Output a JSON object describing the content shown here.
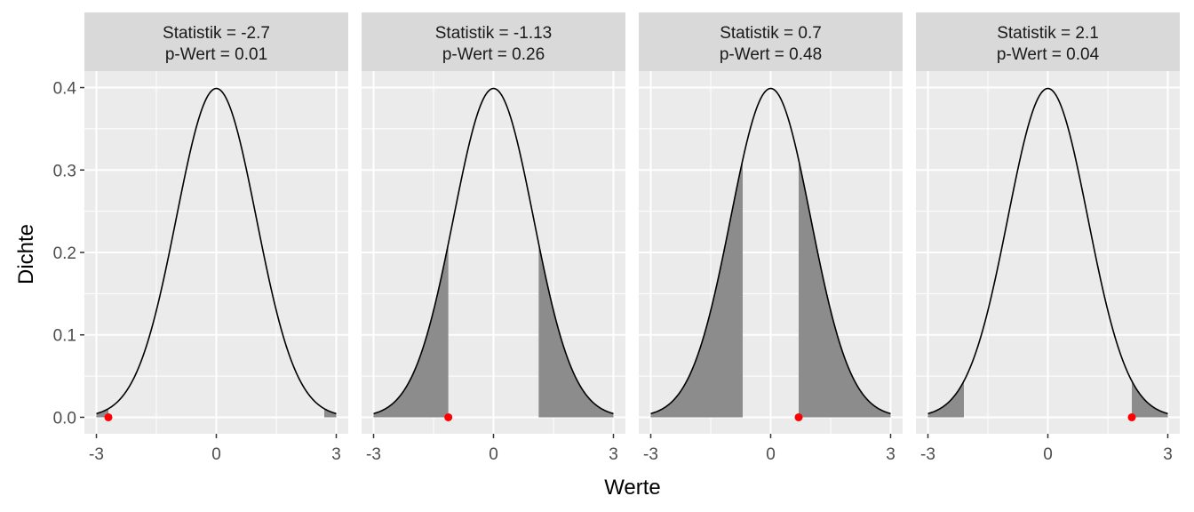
{
  "chart_data": {
    "type": "area",
    "xlabel": "Werte",
    "ylabel": "Dichte",
    "xlim": [
      -3.3,
      3.3
    ],
    "ylim": [
      -0.02,
      0.42
    ],
    "x_ticks": [
      -3,
      0,
      3
    ],
    "x_tick_labels": [
      "-3",
      "0",
      "3"
    ],
    "y_ticks": [
      0.0,
      0.1,
      0.2,
      0.3,
      0.4
    ],
    "y_tick_labels": [
      "0.0",
      "0.1",
      "0.2",
      "0.3",
      "0.4"
    ],
    "curve": "standard normal density on [-3, 3]",
    "grid": true,
    "panels": [
      {
        "label_stat": "Statistik =  -2.7",
        "label_p": "p-Wert =  0.01",
        "statistic": -2.7,
        "p_value": 0.01
      },
      {
        "label_stat": "Statistik =  -1.13",
        "label_p": "p-Wert =  0.26",
        "statistic": -1.13,
        "p_value": 0.26
      },
      {
        "label_stat": "Statistik =  0.7",
        "label_p": "p-Wert =  0.48",
        "statistic": 0.7,
        "p_value": 0.48
      },
      {
        "label_stat": "Statistik =  2.1",
        "label_p": "p-Wert =  0.04",
        "statistic": 2.1,
        "p_value": 0.04
      }
    ],
    "colors": {
      "panel_background": "#ebebeb",
      "strip_background": "#d9d9d9",
      "grid": "#ffffff",
      "curve": "#000000",
      "shaded_area": "#8c8c8c",
      "point": "#ff0000"
    }
  }
}
